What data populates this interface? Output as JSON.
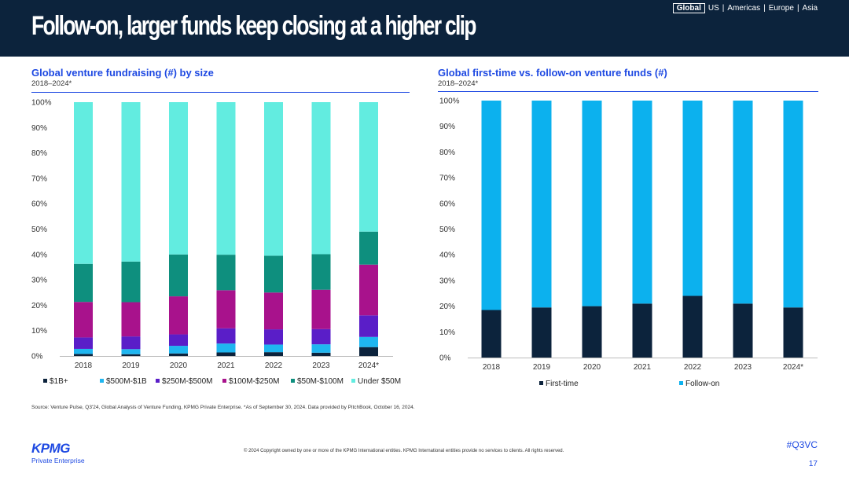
{
  "header": {
    "title": "Follow-on, larger funds keep closing at a higher clip",
    "regions": {
      "active": "Global",
      "rest": [
        "US",
        "Americas",
        "Europe",
        "Asia"
      ],
      "separator": "|"
    }
  },
  "colors": {
    "header_bg": "#0c233c",
    "accent": "#1e49e2",
    "b1plus": "#0c233c",
    "b500m": "#1fb6f0",
    "b250m": "#5a1ec8",
    "b100m": "#a8128c",
    "b50m": "#0e8f7e",
    "under50": "#62ece0",
    "first_time": "#0c233c",
    "follow_on": "#0cb1ee"
  },
  "chart_data": [
    {
      "type": "bar",
      "stacked": true,
      "title": "Global venture fundraising (#) by size",
      "subtitle": "2018–2024*",
      "categories": [
        "2018",
        "2019",
        "2020",
        "2021",
        "2022",
        "2023",
        "2024*"
      ],
      "ylim": [
        0,
        100
      ],
      "yticks": [
        "0%",
        "10%",
        "20%",
        "30%",
        "40%",
        "50%",
        "60%",
        "70%",
        "80%",
        "90%",
        "100%"
      ],
      "series": [
        {
          "name": "$1B+",
          "values": [
            0.8,
            0.7,
            1.0,
            1.4,
            1.5,
            1.3,
            3.5
          ]
        },
        {
          "name": "$500M-$1B",
          "values": [
            2.0,
            2.0,
            3.0,
            3.5,
            3.0,
            3.3,
            4.0
          ]
        },
        {
          "name": "$250M-$500M",
          "values": [
            4.5,
            5.0,
            4.5,
            6.0,
            6.0,
            6.0,
            8.5
          ]
        },
        {
          "name": "$100M-$250M",
          "values": [
            14.0,
            13.5,
            15.0,
            15.0,
            14.5,
            15.5,
            20.0
          ]
        },
        {
          "name": "$50M-$100M",
          "values": [
            15.0,
            16.0,
            16.5,
            14.0,
            14.5,
            14.0,
            13.0
          ]
        },
        {
          "name": "Under $50M",
          "values": [
            63.7,
            62.8,
            60.0,
            60.1,
            60.5,
            59.9,
            51.0
          ]
        }
      ],
      "legend_position": "bottom"
    },
    {
      "type": "bar",
      "stacked": true,
      "title": "Global first-time vs. follow-on venture funds (#)",
      "subtitle": "2018–2024*",
      "categories": [
        "2018",
        "2019",
        "2020",
        "2021",
        "2022",
        "2023",
        "2024*"
      ],
      "ylim": [
        0,
        100
      ],
      "yticks": [
        "0%",
        "10%",
        "20%",
        "30%",
        "40%",
        "50%",
        "60%",
        "70%",
        "80%",
        "90%",
        "100%"
      ],
      "series": [
        {
          "name": "First-time",
          "values": [
            18.5,
            19.5,
            20.0,
            21.0,
            24.0,
            21.0,
            19.5
          ]
        },
        {
          "name": "Follow-on",
          "values": [
            81.5,
            80.5,
            80.0,
            79.0,
            76.0,
            79.0,
            80.5
          ]
        }
      ],
      "legend_position": "bottom"
    }
  ],
  "footer": {
    "source": "Source: Venture Pulse, Q3'24, Global Analysis of Venture Funding, KPMG Private Enterprise. *As of September 30, 2024. Data provided by PitchBook, October 16, 2024.",
    "copyright": "© 2024 Copyright owned by one or more of the KPMG International entities. KPMG International entities provide no services to clients. All rights reserved.",
    "logo_text": "KPMG",
    "logo_sub": "Private Enterprise",
    "hashtag": "#Q3VC",
    "page": "17"
  }
}
